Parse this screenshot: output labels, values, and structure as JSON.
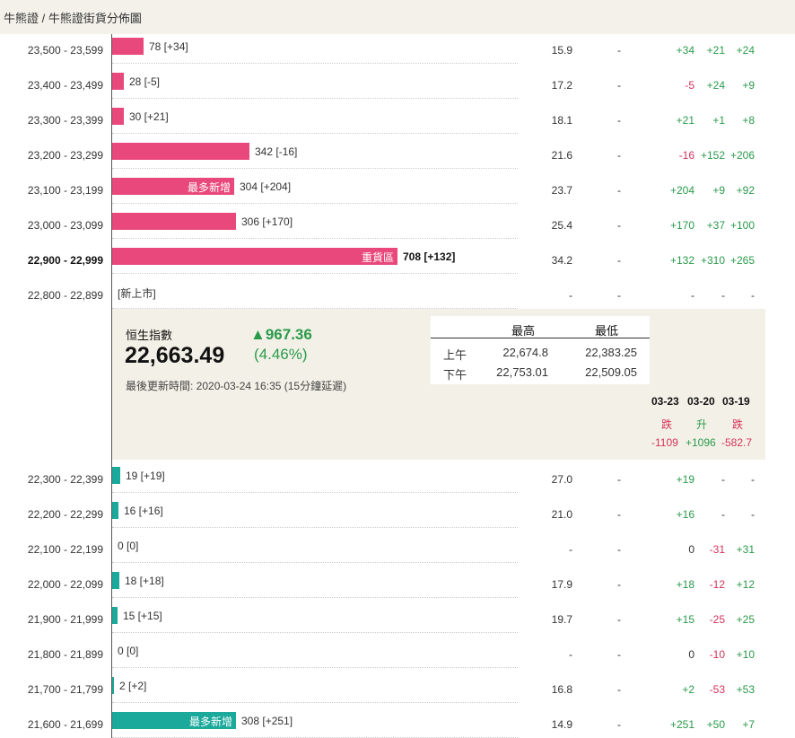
{
  "breadcrumb": "牛熊證 / 牛熊證街貨分佈圖",
  "rows_upper": [
    {
      "range": "23,500 - 23,599",
      "count": "78 [+34]",
      "bar_pct": 4.9,
      "tag": "",
      "ratio": "15.9",
      "dash": "-",
      "c1": "+34",
      "c2": "+21",
      "c3": "+24",
      "bold": false
    },
    {
      "range": "23,400 - 23,499",
      "count": "28 [-5]",
      "bar_pct": 1.8,
      "tag": "",
      "ratio": "17.2",
      "dash": "-",
      "c1": "-5",
      "c2": "+24",
      "c3": "+9",
      "bold": false
    },
    {
      "range": "23,300 - 23,399",
      "count": "30 [+21]",
      "bar_pct": 1.9,
      "tag": "",
      "ratio": "18.1",
      "dash": "-",
      "c1": "+21",
      "c2": "+1",
      "c3": "+8",
      "bold": false
    },
    {
      "range": "23,200 - 23,299",
      "count": "342 [-16]",
      "bar_pct": 21.6,
      "tag": "",
      "ratio": "21.6",
      "dash": "-",
      "c1": "-16",
      "c2": "+152",
      "c3": "+206",
      "bold": false
    },
    {
      "range": "23,100 - 23,199",
      "count": "304 [+204]",
      "bar_pct": 19.2,
      "tag": "最多新增",
      "ratio": "23.7",
      "dash": "-",
      "c1": "+204",
      "c2": "+9",
      "c3": "+92",
      "bold": false
    },
    {
      "range": "23,000 - 23,099",
      "count": "306 [+170]",
      "bar_pct": 19.4,
      "tag": "",
      "ratio": "25.4",
      "dash": "-",
      "c1": "+170",
      "c2": "+37",
      "c3": "+100",
      "bold": false
    },
    {
      "range": "22,900 - 22,999",
      "count": "708 [+132]",
      "bar_pct": 44.8,
      "tag": "重貨區",
      "ratio": "34.2",
      "dash": "-",
      "c1": "+132",
      "c2": "+310",
      "c3": "+265",
      "bold": true
    },
    {
      "range": "22,800 - 22,899",
      "count": "[新上市]",
      "bar_pct": 0,
      "tag": "",
      "ratio": "-",
      "dash": "-",
      "c1": "-",
      "c2": "-",
      "c3": "-",
      "bold": false
    }
  ],
  "rows_lower": [
    {
      "range": "22,300 - 22,399",
      "count": "19 [+19]",
      "bar_pct": 1.2,
      "tag": "",
      "ratio": "27.0",
      "dash": "-",
      "c1": "+19",
      "c2": "-",
      "c3": "-",
      "bold": false
    },
    {
      "range": "22,200 - 22,299",
      "count": "16 [+16]",
      "bar_pct": 1.0,
      "tag": "",
      "ratio": "21.0",
      "dash": "-",
      "c1": "+16",
      "c2": "-",
      "c3": "-",
      "bold": false
    },
    {
      "range": "22,100 - 22,199",
      "count": "0 [0]",
      "bar_pct": 0,
      "tag": "",
      "ratio": "-",
      "dash": "-",
      "c1": "0",
      "c2": "-31",
      "c3": "+31",
      "bold": false
    },
    {
      "range": "22,000 - 22,099",
      "count": "18 [+18]",
      "bar_pct": 1.1,
      "tag": "",
      "ratio": "17.9",
      "dash": "-",
      "c1": "+18",
      "c2": "-12",
      "c3": "+12",
      "bold": false
    },
    {
      "range": "21,900 - 21,999",
      "count": "15 [+15]",
      "bar_pct": 0.9,
      "tag": "",
      "ratio": "19.7",
      "dash": "-",
      "c1": "+15",
      "c2": "-25",
      "c3": "+25",
      "bold": false
    },
    {
      "range": "21,800 - 21,899",
      "count": "0 [0]",
      "bar_pct": 0,
      "tag": "",
      "ratio": "-",
      "dash": "-",
      "c1": "0",
      "c2": "-10",
      "c3": "+10",
      "bold": false
    },
    {
      "range": "21,700 - 21,799",
      "count": "2 [+2]",
      "bar_pct": 0.1,
      "tag": "",
      "ratio": "16.8",
      "dash": "-",
      "c1": "+2",
      "c2": "-53",
      "c3": "+53",
      "bold": false
    },
    {
      "range": "21,600 - 21,699",
      "count": "308 [+251]",
      "bar_pct": 19.5,
      "tag": "最多新增",
      "ratio": "14.9",
      "dash": "-",
      "c1": "+251",
      "c2": "+50",
      "c3": "+7",
      "bold": false
    }
  ],
  "index_panel": {
    "name": "恒生指數",
    "value": "22,663.49",
    "change": "▲967.36",
    "change_pct": "(4.46%)",
    "updated": "最後更新時間: 2020-03-24 16:35 (15分鐘延遲)",
    "table": {
      "headers": [
        "最高",
        "最低"
      ],
      "rows": [
        {
          "label": "上午",
          "high": "22,674.8",
          "low": "22,383.25"
        },
        {
          "label": "下午",
          "high": "22,753.01",
          "low": "22,509.05"
        }
      ]
    },
    "days": [
      "03-23",
      "03-20",
      "03-19"
    ],
    "directions": [
      "跌",
      "升",
      "跌"
    ],
    "day_values": [
      "-1109",
      "+1096",
      "-582.7"
    ]
  },
  "colors": {
    "bull_bar": "#e8487b",
    "bear_bar": "#1aa99b",
    "positive": "#2a9a4b",
    "negative": "#d6325a",
    "panel_bg": "#f3f1e7",
    "header_bg": "#f3f1ea"
  }
}
